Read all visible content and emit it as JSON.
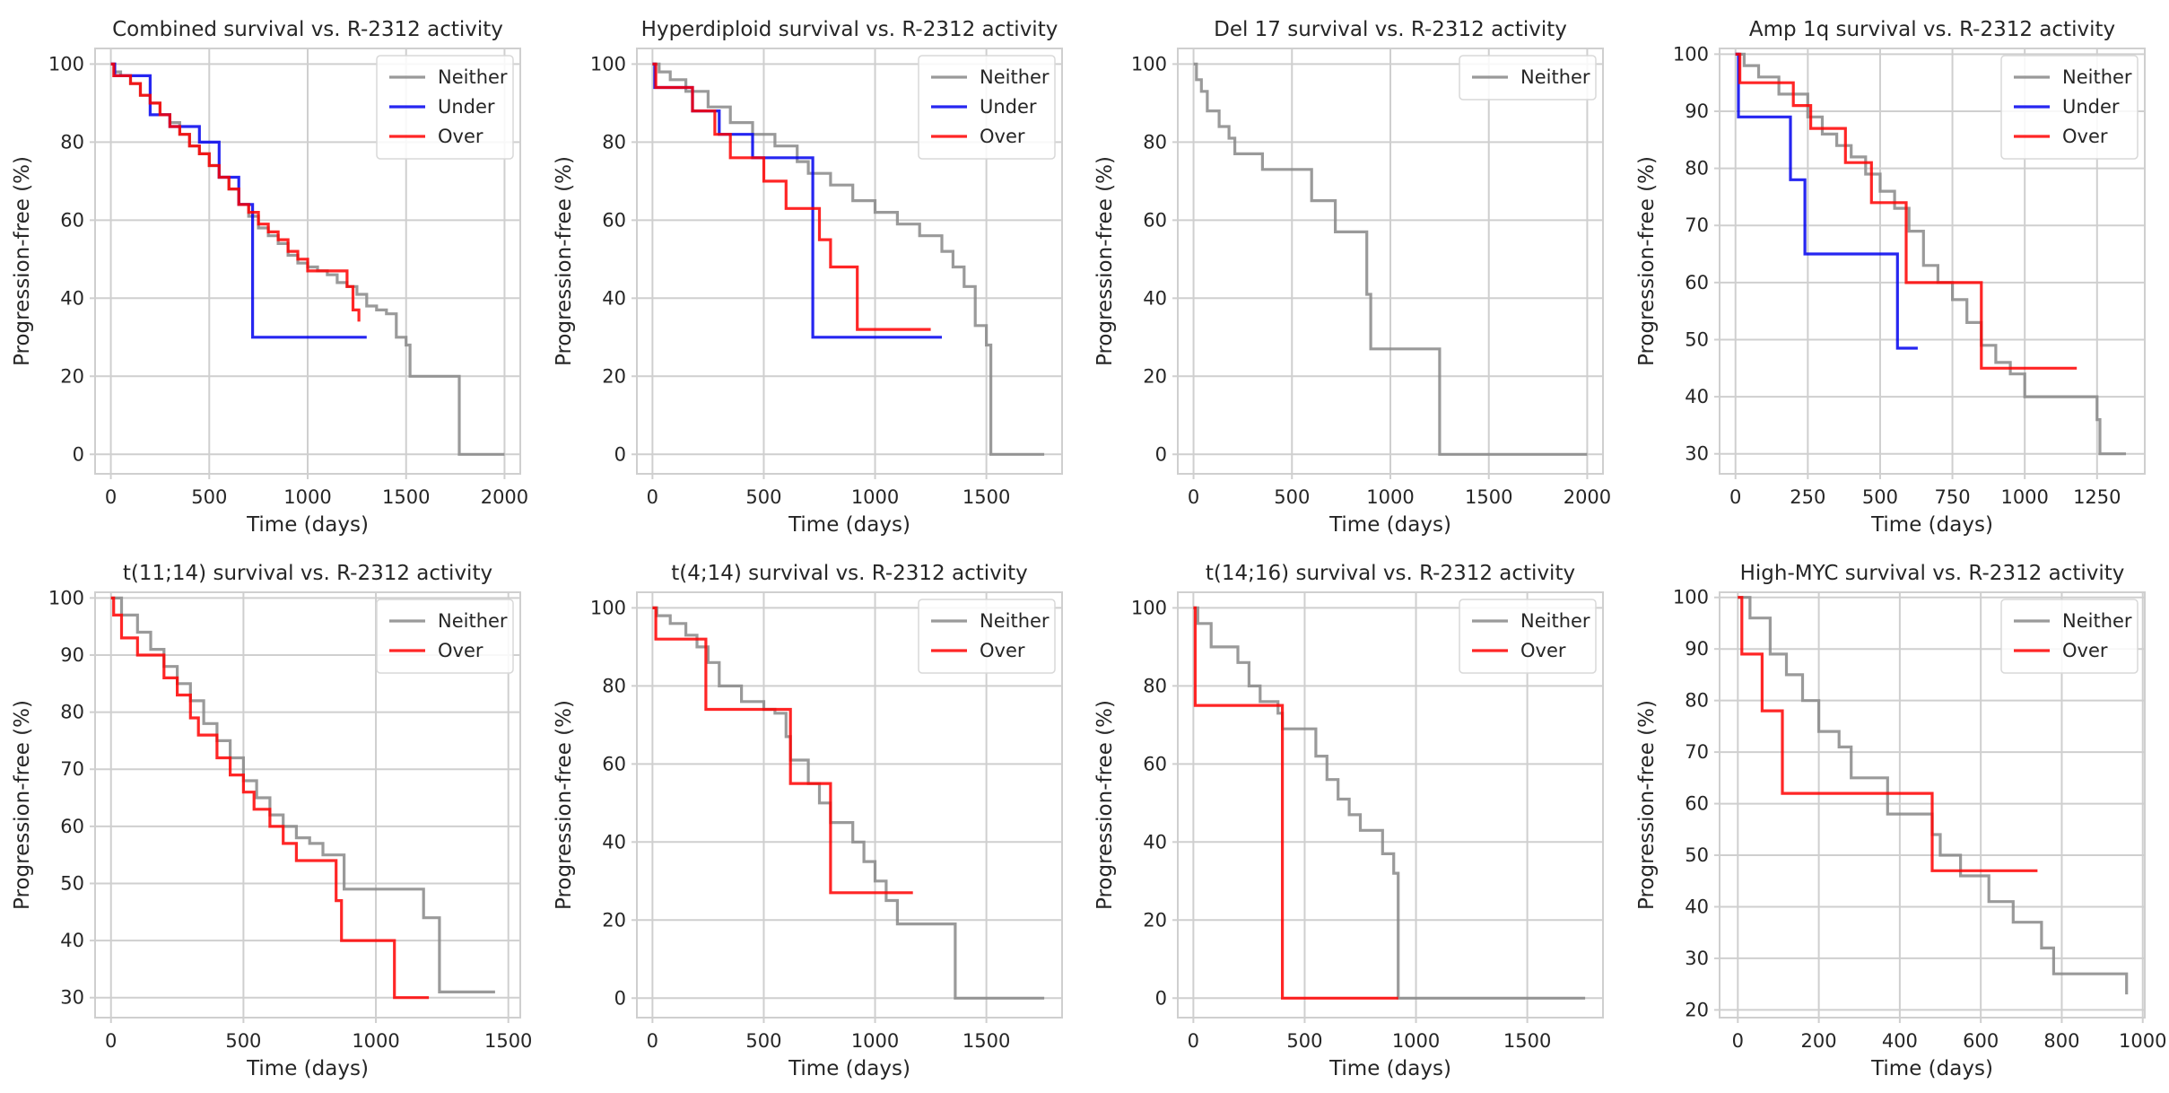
{
  "chart_data": [
    {
      "type": "line",
      "title": "Combined survival vs. R-2312 activity",
      "xlabel": "Time (days)",
      "ylabel": "Progression-free (%)",
      "xlim": [
        -80,
        2080
      ],
      "ylim": [
        -5,
        104
      ],
      "xticks": [
        0,
        500,
        1000,
        1500,
        2000
      ],
      "yticks": [
        0,
        20,
        40,
        60,
        80,
        100
      ],
      "legend_position": "top-right",
      "series": [
        {
          "name": "Neither",
          "color": "#888888",
          "x": [
            0,
            20,
            50,
            100,
            150,
            200,
            250,
            300,
            350,
            400,
            450,
            500,
            550,
            600,
            650,
            700,
            750,
            800,
            850,
            900,
            950,
            1000,
            1050,
            1100,
            1150,
            1200,
            1250,
            1300,
            1350,
            1400,
            1450,
            1500,
            1520,
            1760,
            1770,
            2000
          ],
          "y": [
            100,
            98,
            97,
            95,
            92,
            90,
            87,
            85,
            82,
            79,
            77,
            74,
            71,
            68,
            64,
            61,
            58,
            56,
            54,
            51,
            49,
            48,
            47,
            46,
            44,
            43,
            41,
            38,
            37,
            36,
            30,
            28,
            20,
            20,
            0,
            0
          ]
        },
        {
          "name": "Under",
          "color": "#0000ee",
          "x": [
            0,
            20,
            200,
            300,
            450,
            550,
            650,
            720,
            1300
          ],
          "y": [
            100,
            97,
            87,
            84,
            80,
            71,
            64,
            30,
            30
          ]
        },
        {
          "name": "Over",
          "color": "#ff0000",
          "x": [
            0,
            15,
            100,
            150,
            200,
            250,
            300,
            350,
            400,
            450,
            500,
            550,
            600,
            650,
            700,
            750,
            800,
            850,
            900,
            950,
            1000,
            1100,
            1200,
            1230,
            1260
          ],
          "y": [
            100,
            97,
            95,
            92,
            90,
            87,
            84,
            82,
            79,
            77,
            74,
            71,
            68,
            64,
            62,
            59,
            57,
            55,
            52,
            50,
            47,
            47,
            43,
            37,
            34
          ]
        }
      ]
    },
    {
      "type": "line",
      "title": "Hyperdiploid survival vs. R-2312 activity",
      "xlabel": "Time (days)",
      "ylabel": "Progression-free (%)",
      "xlim": [
        -70,
        1840
      ],
      "ylim": [
        -5,
        104
      ],
      "xticks": [
        0,
        500,
        1000,
        1500
      ],
      "yticks": [
        0,
        20,
        40,
        60,
        80,
        100
      ],
      "legend_position": "top-right",
      "series": [
        {
          "name": "Neither",
          "color": "#888888",
          "x": [
            0,
            30,
            80,
            150,
            250,
            350,
            450,
            550,
            650,
            700,
            800,
            900,
            1000,
            1100,
            1200,
            1300,
            1350,
            1400,
            1450,
            1500,
            1520,
            1760
          ],
          "y": [
            100,
            98,
            96,
            93,
            89,
            85,
            82,
            79,
            75,
            72,
            69,
            65,
            62,
            59,
            56,
            52,
            48,
            43,
            33,
            28,
            0,
            0
          ]
        },
        {
          "name": "Under",
          "color": "#0000ee",
          "x": [
            0,
            10,
            180,
            300,
            450,
            720,
            1300
          ],
          "y": [
            100,
            94,
            88,
            82,
            76,
            30,
            30
          ]
        },
        {
          "name": "Over",
          "color": "#ff0000",
          "x": [
            0,
            15,
            180,
            280,
            350,
            500,
            600,
            750,
            800,
            920,
            1250
          ],
          "y": [
            100,
            94,
            88,
            82,
            76,
            70,
            63,
            55,
            48,
            32,
            32
          ]
        }
      ]
    },
    {
      "type": "line",
      "title": "Del 17 survival vs. R-2312 activity",
      "xlabel": "Time (days)",
      "ylabel": "Progression-free (%)",
      "xlim": [
        -80,
        2080
      ],
      "ylim": [
        -5,
        104
      ],
      "xticks": [
        0,
        500,
        1000,
        1500,
        2000
      ],
      "yticks": [
        0,
        20,
        40,
        60,
        80,
        100
      ],
      "legend_position": "top-right",
      "series": [
        {
          "name": "Neither",
          "color": "#888888",
          "x": [
            0,
            15,
            40,
            70,
            130,
            180,
            210,
            350,
            600,
            720,
            880,
            900,
            1250,
            2000
          ],
          "y": [
            100,
            96,
            93,
            88,
            84,
            81,
            77,
            73,
            65,
            57,
            41,
            27,
            0,
            0
          ]
        }
      ]
    },
    {
      "type": "line",
      "title": "Amp 1q survival vs. R-2312 activity",
      "xlabel": "Time (days)",
      "ylabel": "Progression-free (%)",
      "xlim": [
        -55,
        1415
      ],
      "ylim": [
        26.5,
        101
      ],
      "xticks": [
        0,
        250,
        500,
        750,
        1000,
        1250
      ],
      "yticks": [
        30,
        40,
        50,
        60,
        70,
        80,
        90,
        100
      ],
      "legend_position": "top-right",
      "series": [
        {
          "name": "Neither",
          "color": "#888888",
          "x": [
            0,
            30,
            80,
            150,
            250,
            300,
            350,
            400,
            450,
            500,
            550,
            600,
            650,
            700,
            750,
            800,
            850,
            900,
            950,
            1000,
            1100,
            1200,
            1250,
            1260,
            1350
          ],
          "y": [
            100,
            98,
            96,
            93,
            89,
            86,
            84,
            82,
            79,
            76,
            73,
            69,
            63,
            60,
            57,
            53,
            49,
            46,
            44,
            40,
            40,
            40,
            36,
            30,
            30
          ]
        },
        {
          "name": "Under",
          "color": "#0000ee",
          "x": [
            0,
            10,
            190,
            240,
            560,
            630
          ],
          "y": [
            100,
            89,
            78,
            65,
            48.5,
            48.5
          ]
        },
        {
          "name": "Over",
          "color": "#ff0000",
          "x": [
            0,
            15,
            200,
            260,
            380,
            470,
            590,
            790,
            850,
            1180
          ],
          "y": [
            100,
            95,
            91,
            87,
            81,
            74,
            60,
            60,
            45,
            45
          ]
        }
      ]
    },
    {
      "type": "line",
      "title": "t(11;14) survival vs. R-2312 activity",
      "xlabel": "Time (days)",
      "ylabel": "Progression-free (%)",
      "xlim": [
        -60,
        1545
      ],
      "ylim": [
        26.5,
        101
      ],
      "xticks": [
        0,
        500,
        1000,
        1500
      ],
      "yticks": [
        30,
        40,
        50,
        60,
        70,
        80,
        90,
        100
      ],
      "legend_position": "top-right",
      "series": [
        {
          "name": "Neither",
          "color": "#888888",
          "x": [
            0,
            40,
            100,
            150,
            200,
            250,
            300,
            350,
            400,
            450,
            500,
            550,
            600,
            650,
            700,
            750,
            800,
            880,
            1100,
            1180,
            1240,
            1450
          ],
          "y": [
            100,
            97,
            94,
            91,
            88,
            85,
            82,
            78,
            75,
            72,
            68,
            65,
            62,
            60,
            58,
            57,
            55,
            49,
            49,
            44,
            31,
            31
          ]
        },
        {
          "name": "Over",
          "color": "#ff0000",
          "x": [
            0,
            10,
            40,
            100,
            200,
            250,
            300,
            330,
            400,
            450,
            500,
            540,
            600,
            650,
            700,
            850,
            870,
            1070,
            1200
          ],
          "y": [
            100,
            97,
            93,
            90,
            86,
            83,
            79,
            76,
            72,
            69,
            66,
            63,
            60,
            57,
            54,
            47,
            40,
            30,
            30
          ]
        }
      ]
    },
    {
      "type": "line",
      "title": "t(4;14) survival vs. R-2312 activity",
      "xlabel": "Time (days)",
      "ylabel": "Progression-free (%)",
      "xlim": [
        -70,
        1840
      ],
      "ylim": [
        -5,
        104
      ],
      "xticks": [
        0,
        500,
        1000,
        1500
      ],
      "yticks": [
        0,
        20,
        40,
        60,
        80,
        100
      ],
      "legend_position": "top-right",
      "series": [
        {
          "name": "Neither",
          "color": "#888888",
          "x": [
            0,
            20,
            80,
            150,
            200,
            250,
            300,
            400,
            500,
            550,
            600,
            620,
            700,
            750,
            800,
            900,
            950,
            1000,
            1050,
            1100,
            1350,
            1360,
            1760
          ],
          "y": [
            100,
            98,
            96,
            93,
            90,
            86,
            80,
            76,
            74,
            73,
            67,
            61,
            55,
            50,
            45,
            40,
            35,
            30,
            25,
            19,
            19,
            0,
            0
          ]
        },
        {
          "name": "Over",
          "color": "#ff0000",
          "x": [
            0,
            15,
            240,
            600,
            620,
            800,
            1170
          ],
          "y": [
            100,
            92,
            74,
            74,
            55,
            27,
            27
          ]
        }
      ]
    },
    {
      "type": "line",
      "title": "t(14;16) survival vs. R-2312 activity",
      "xlabel": "Time (days)",
      "ylabel": "Progression-free (%)",
      "xlim": [
        -70,
        1840
      ],
      "ylim": [
        -5,
        104
      ],
      "xticks": [
        0,
        500,
        1000,
        1500
      ],
      "yticks": [
        0,
        20,
        40,
        60,
        80,
        100
      ],
      "legend_position": "top-right",
      "series": [
        {
          "name": "Neither",
          "color": "#888888",
          "x": [
            0,
            20,
            80,
            200,
            250,
            300,
            380,
            400,
            550,
            600,
            650,
            700,
            750,
            850,
            900,
            920,
            1760
          ],
          "y": [
            100,
            96,
            90,
            86,
            80,
            76,
            73,
            69,
            62,
            56,
            51,
            47,
            43,
            37,
            32,
            0,
            0
          ]
        },
        {
          "name": "Over",
          "color": "#ff0000",
          "x": [
            0,
            8,
            390,
            400,
            920
          ],
          "y": [
            100,
            75,
            75,
            0,
            0
          ]
        }
      ]
    },
    {
      "type": "line",
      "title": "High-MYC survival vs. R-2312 activity",
      "xlabel": "Time (days)",
      "ylabel": "Progression-free (%)",
      "xlim": [
        -45,
        1005
      ],
      "ylim": [
        18.5,
        101
      ],
      "xticks": [
        0,
        200,
        400,
        600,
        800,
        1000
      ],
      "yticks": [
        20,
        30,
        40,
        50,
        60,
        70,
        80,
        90,
        100
      ],
      "legend_position": "top-right",
      "series": [
        {
          "name": "Neither",
          "color": "#888888",
          "x": [
            0,
            30,
            80,
            120,
            160,
            200,
            250,
            280,
            370,
            450,
            480,
            500,
            550,
            620,
            680,
            750,
            780,
            960
          ],
          "y": [
            100,
            96,
            89,
            85,
            80,
            74,
            71,
            65,
            58,
            58,
            54,
            50,
            46,
            41,
            37,
            32,
            27,
            23
          ]
        },
        {
          "name": "Over",
          "color": "#ff0000",
          "x": [
            0,
            10,
            60,
            110,
            480,
            740
          ],
          "y": [
            100,
            89,
            78,
            62,
            47,
            47
          ]
        }
      ]
    }
  ]
}
